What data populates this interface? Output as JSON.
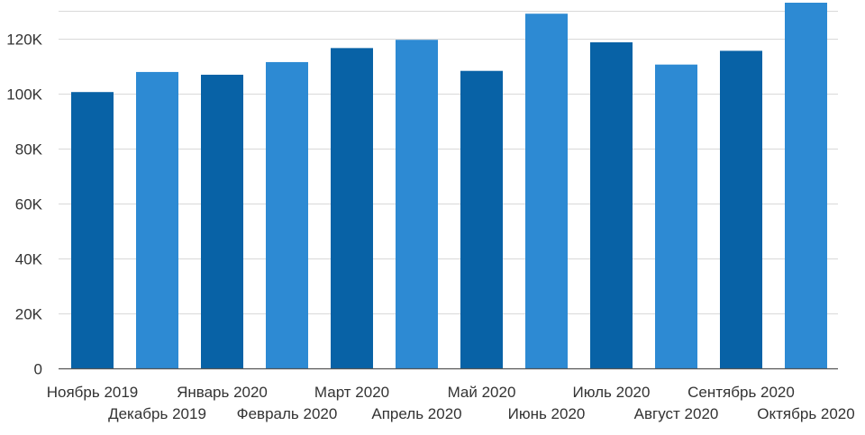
{
  "chart_data": {
    "type": "bar",
    "title": "",
    "xlabel": "",
    "ylabel": "",
    "ylim": [
      0,
      133000
    ],
    "yticks": [
      0,
      20000,
      40000,
      60000,
      80000,
      100000,
      120000
    ],
    "ytick_labels": [
      "0",
      "20K",
      "40K",
      "60K",
      "80K",
      "100K",
      "120K"
    ],
    "grid": true,
    "legend": "none",
    "categories": [
      "Ноябрь 2019",
      "Декабрь 2019",
      "Январь 2020",
      "Февраль 2020",
      "Март 2020",
      "Апрель 2020",
      "Май 2020",
      "Июнь 2020",
      "Июль 2020",
      "Август 2020",
      "Сентябрь 2020",
      "Октябрь 2020"
    ],
    "values": [
      100500,
      107800,
      106800,
      111400,
      116500,
      119500,
      108200,
      129000,
      118600,
      110500,
      115500,
      133000
    ],
    "colors": {
      "dark": "#0862a6",
      "light": "#2d8ad3",
      "grid": "#d9d9d9",
      "axis": "#555555",
      "text": "#333333"
    }
  }
}
